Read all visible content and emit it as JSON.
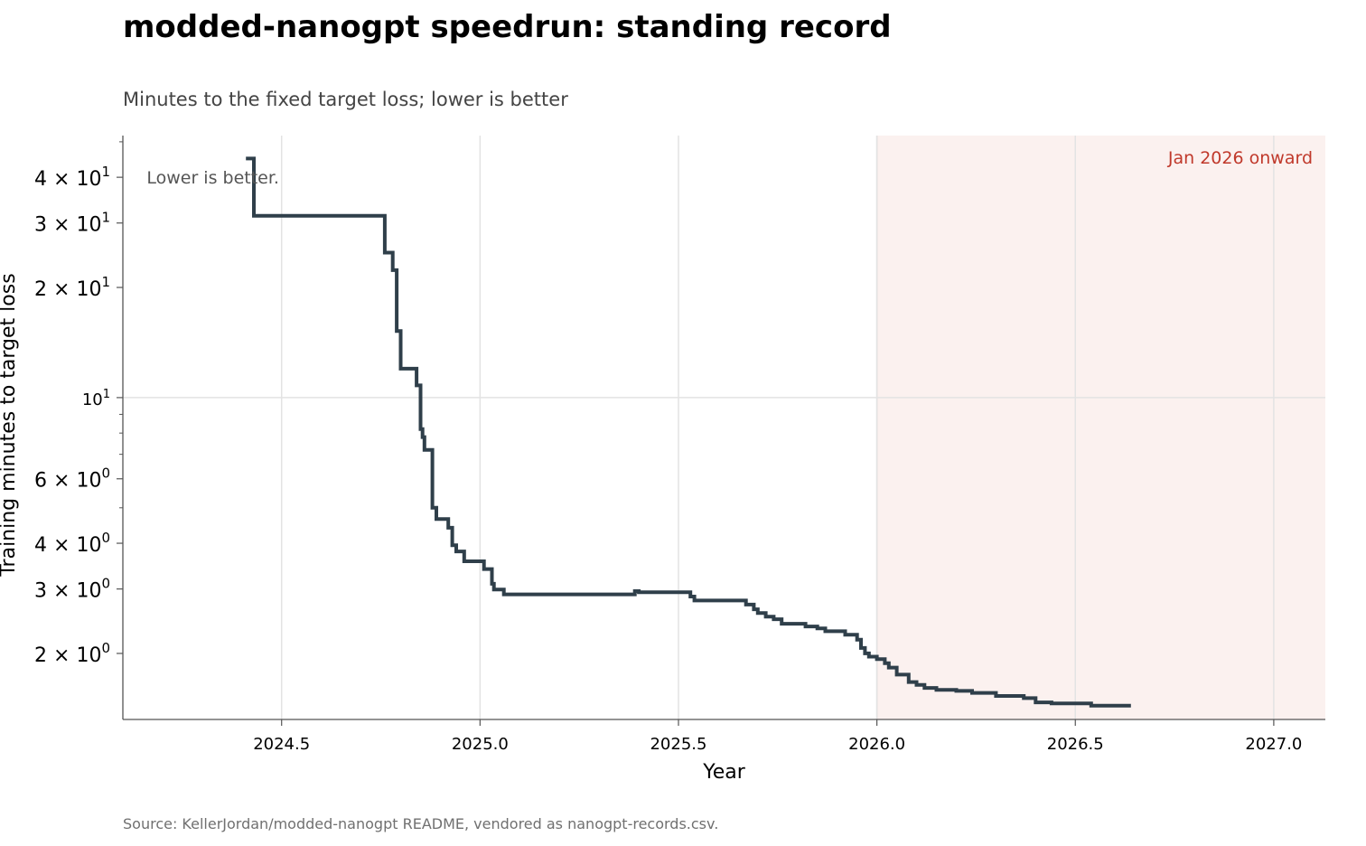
{
  "title": "modded-nanogpt speedrun: standing record",
  "subtitle": "Minutes to the fixed target loss; lower is better",
  "source": "Source: KellerJordan/modded-nanogpt README, vendored as nanogpt-records.csv.",
  "colors": {
    "line": "#2f3f4a",
    "shade": "#fbf1ef",
    "shade_label": "#c0392b",
    "grid": "#e3e3e3",
    "axis": "#555555"
  },
  "chart_data": {
    "type": "line",
    "step": "post",
    "xlabel": "Year",
    "ylabel": "Training minutes to target loss",
    "xlim": [
      2024.1,
      2027.13
    ],
    "ylim": [
      1.32,
      52
    ],
    "yscale": "log",
    "grid": true,
    "x_ticks": [
      {
        "value": 2024.5,
        "label": "2024.5"
      },
      {
        "value": 2025.0,
        "label": "2025.0"
      },
      {
        "value": 2025.5,
        "label": "2025.5"
      },
      {
        "value": 2026.0,
        "label": "2026.0"
      },
      {
        "value": 2026.5,
        "label": "2026.5"
      },
      {
        "value": 2027.0,
        "label": "2027.0"
      }
    ],
    "y_ticks": [
      {
        "value": 2,
        "base": "2 × 10",
        "exp": "0"
      },
      {
        "value": 3,
        "base": "3 × 10",
        "exp": "0"
      },
      {
        "value": 4,
        "base": "4 × 10",
        "exp": "0"
      },
      {
        "value": 6,
        "base": "6 × 10",
        "exp": "0"
      },
      {
        "value": 10,
        "base": "10",
        "exp": "1"
      },
      {
        "value": 20,
        "base": "2 × 10",
        "exp": "1"
      },
      {
        "value": 30,
        "base": "3 × 10",
        "exp": "1"
      },
      {
        "value": 40,
        "base": "4 × 10",
        "exp": "1"
      }
    ],
    "y_minor_ticks": [
      5,
      7,
      8,
      9,
      50
    ],
    "shaded_region": {
      "x_start": 2026.0,
      "x_end": 2027.13,
      "label": "Jan 2026 onward"
    },
    "annotation": {
      "text": "Lower is better.",
      "x": 2024.16,
      "y": 38.5
    },
    "series": [
      {
        "points": [
          [
            2024.41,
            45.0
          ],
          [
            2024.43,
            31.4
          ],
          [
            2024.76,
            24.9
          ],
          [
            2024.78,
            22.3
          ],
          [
            2024.79,
            15.2
          ],
          [
            2024.8,
            12.0
          ],
          [
            2024.84,
            10.8
          ],
          [
            2024.85,
            8.2
          ],
          [
            2024.855,
            7.8
          ],
          [
            2024.86,
            7.2
          ],
          [
            2024.88,
            5.0
          ],
          [
            2024.89,
            4.66
          ],
          [
            2024.92,
            4.41
          ],
          [
            2024.93,
            3.95
          ],
          [
            2024.94,
            3.8
          ],
          [
            2024.96,
            3.57
          ],
          [
            2025.01,
            3.4
          ],
          [
            2025.03,
            3.1
          ],
          [
            2025.035,
            2.99
          ],
          [
            2025.06,
            2.9
          ],
          [
            2025.39,
            2.96
          ],
          [
            2025.4,
            2.94
          ],
          [
            2025.53,
            2.86
          ],
          [
            2025.54,
            2.79
          ],
          [
            2025.67,
            2.72
          ],
          [
            2025.69,
            2.64
          ],
          [
            2025.7,
            2.58
          ],
          [
            2025.72,
            2.52
          ],
          [
            2025.74,
            2.48
          ],
          [
            2025.76,
            2.41
          ],
          [
            2025.82,
            2.37
          ],
          [
            2025.85,
            2.34
          ],
          [
            2025.87,
            2.3
          ],
          [
            2025.92,
            2.25
          ],
          [
            2025.95,
            2.18
          ],
          [
            2025.96,
            2.07
          ],
          [
            2025.97,
            2.0
          ],
          [
            2025.98,
            1.96
          ],
          [
            2026.0,
            1.93
          ],
          [
            2026.02,
            1.88
          ],
          [
            2026.03,
            1.83
          ],
          [
            2026.05,
            1.75
          ],
          [
            2026.08,
            1.67
          ],
          [
            2026.1,
            1.64
          ],
          [
            2026.12,
            1.61
          ],
          [
            2026.15,
            1.59
          ],
          [
            2026.2,
            1.58
          ],
          [
            2026.24,
            1.56
          ],
          [
            2026.3,
            1.53
          ],
          [
            2026.37,
            1.51
          ],
          [
            2026.4,
            1.47
          ],
          [
            2026.44,
            1.46
          ],
          [
            2026.54,
            1.44
          ],
          [
            2026.64,
            1.44
          ]
        ]
      }
    ]
  }
}
